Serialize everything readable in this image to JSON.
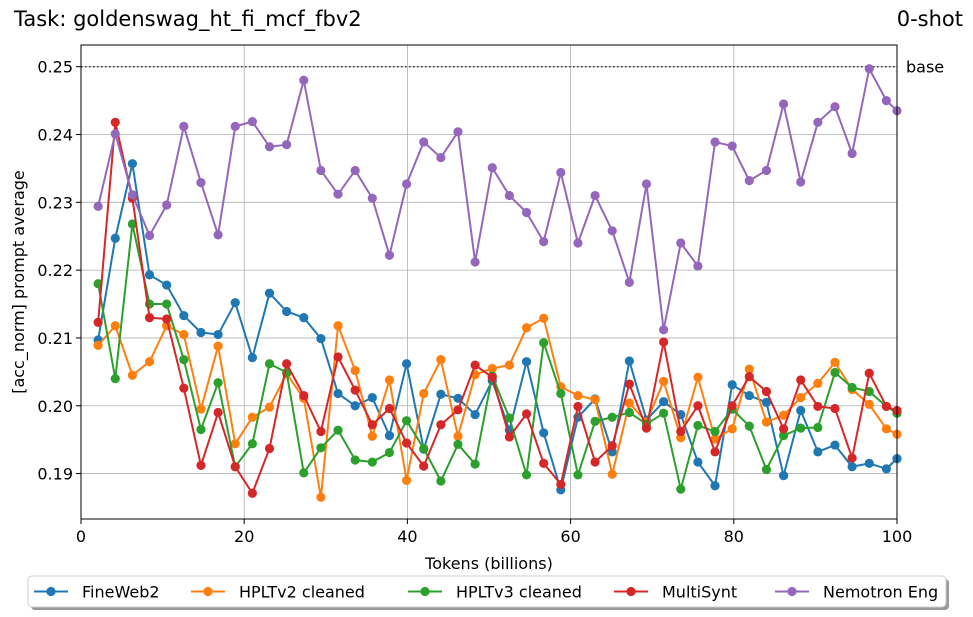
{
  "chart_data": {
    "type": "line",
    "title": "Task: goldenswag_ht_fi_mcf_fbv2",
    "shot_label": "0-shot",
    "xlabel": "Tokens (billions)",
    "ylabel": "[acc_norm] prompt average",
    "xlim": [
      0,
      100
    ],
    "ylim": [
      0.1833,
      0.2532
    ],
    "grid": true,
    "legend_position": "bottom",
    "xticks": [
      0,
      20,
      40,
      60,
      80,
      100
    ],
    "yticks": [
      0.19,
      0.2,
      0.21,
      0.22,
      0.23,
      0.24,
      0.25
    ],
    "xtick_labels": [
      "0",
      "20",
      "40",
      "60",
      "80",
      "100"
    ],
    "ytick_labels": [
      "0.19",
      "0.20",
      "0.21",
      "0.22",
      "0.23",
      "0.24",
      "0.25"
    ],
    "baseline": {
      "label": "base",
      "value": 0.25,
      "color": "#333333"
    },
    "x": [
      2.1,
      4.2,
      6.3,
      8.4,
      10.5,
      12.6,
      14.7,
      16.8,
      18.9,
      21.0,
      23.1,
      25.2,
      27.3,
      29.4,
      31.5,
      33.6,
      35.7,
      37.8,
      39.9,
      42.0,
      44.1,
      46.2,
      48.3,
      50.4,
      52.5,
      54.6,
      56.7,
      58.8,
      60.9,
      63.0,
      65.1,
      67.2,
      69.3,
      71.4,
      73.5,
      75.6,
      77.7,
      79.8,
      81.9,
      84.0,
      86.1,
      88.2,
      90.3,
      92.4,
      94.5,
      96.6,
      98.7,
      100.0
    ],
    "series": [
      {
        "name": "FineWeb2",
        "color": "#1f77b4",
        "values": [
          0.2097,
          0.2247,
          0.2357,
          0.2193,
          0.2178,
          0.2133,
          0.2108,
          0.2105,
          0.2152,
          0.2071,
          0.2166,
          0.2139,
          0.213,
          0.2099,
          0.2018,
          0.2,
          0.2012,
          0.1956,
          0.2062,
          0.1936,
          0.2017,
          0.2011,
          0.1987,
          0.2037,
          0.1964,
          0.2065,
          0.196,
          0.1876,
          0.1983,
          0.201,
          0.1932,
          0.2066,
          0.1979,
          0.2006,
          0.1987,
          0.1917,
          0.1882,
          0.2031,
          0.2015,
          0.2005,
          0.1897,
          0.1993,
          0.1932,
          0.1942,
          0.191,
          0.1915,
          0.1907,
          0.1922
        ]
      },
      {
        "name": "HPLTv2 cleaned",
        "color": "#ff7f0e",
        "values": [
          0.2089,
          0.2118,
          0.2045,
          0.2065,
          0.2118,
          0.2105,
          0.1995,
          0.2088,
          0.1944,
          0.1983,
          0.1998,
          0.2047,
          0.2011,
          0.1865,
          0.2118,
          0.2052,
          0.1955,
          0.2038,
          0.189,
          0.2018,
          0.2068,
          0.1955,
          0.2046,
          0.2055,
          0.206,
          0.2115,
          0.2129,
          0.2028,
          0.2015,
          0.2009,
          0.1899,
          0.2004,
          0.1976,
          0.2036,
          0.1953,
          0.2042,
          0.1951,
          0.1966,
          0.2054,
          0.1976,
          0.1986,
          0.2012,
          0.2033,
          0.2064,
          0.2024,
          0.2002,
          0.1966,
          0.1958
        ]
      },
      {
        "name": "HPLTv3 cleaned",
        "color": "#2ca02c",
        "values": [
          0.218,
          0.204,
          0.2268,
          0.215,
          0.215,
          0.2068,
          0.1965,
          0.2034,
          0.191,
          0.1944,
          0.2062,
          0.2049,
          0.1901,
          0.1938,
          0.1964,
          0.192,
          0.1917,
          0.1931,
          0.1978,
          0.1937,
          0.1889,
          0.1943,
          0.1914,
          0.2044,
          0.1982,
          0.1898,
          0.2093,
          0.2018,
          0.1898,
          0.1977,
          0.1983,
          0.199,
          0.1973,
          0.1989,
          0.1877,
          0.1971,
          0.1962,
          0.1995,
          0.197,
          0.1906,
          0.1956,
          0.1967,
          0.1968,
          0.2049,
          0.2027,
          0.2021,
          0.1999,
          0.1989
        ]
      },
      {
        "name": "MultiSynt",
        "color": "#d62728",
        "values": [
          0.2123,
          0.2418,
          0.2306,
          0.213,
          0.2128,
          0.2026,
          0.1912,
          0.199,
          0.191,
          0.1871,
          0.1937,
          0.2062,
          0.2015,
          0.1962,
          0.2072,
          0.2023,
          0.1972,
          0.1996,
          0.1945,
          0.1911,
          0.1972,
          0.1994,
          0.206,
          0.2042,
          0.1954,
          0.1988,
          0.1915,
          0.1884,
          0.1999,
          0.1917,
          0.1941,
          0.2032,
          0.1967,
          0.2094,
          0.1962,
          0.2,
          0.1932,
          0.2,
          0.2043,
          0.2021,
          0.1966,
          0.2038,
          0.1999,
          0.1996,
          0.1923,
          0.2048,
          0.1999,
          0.1993
        ]
      },
      {
        "name": "Nemotron Eng",
        "color": "#9467bd",
        "values": [
          0.2294,
          0.2401,
          0.2311,
          0.2251,
          0.2296,
          0.2412,
          0.2329,
          0.2252,
          0.2412,
          0.2419,
          0.2382,
          0.2385,
          0.248,
          0.2347,
          0.2312,
          0.2347,
          0.2306,
          0.2222,
          0.2327,
          0.2389,
          0.2366,
          0.2404,
          0.2212,
          0.2351,
          0.231,
          0.2285,
          0.2242,
          0.2344,
          0.224,
          0.231,
          0.2258,
          0.2182,
          0.2327,
          0.2112,
          0.224,
          0.2206,
          0.2389,
          0.2383,
          0.2332,
          0.2347,
          0.2445,
          0.233,
          0.2418,
          0.2441,
          0.2372,
          0.2497,
          0.245,
          0.2435
        ]
      }
    ]
  }
}
